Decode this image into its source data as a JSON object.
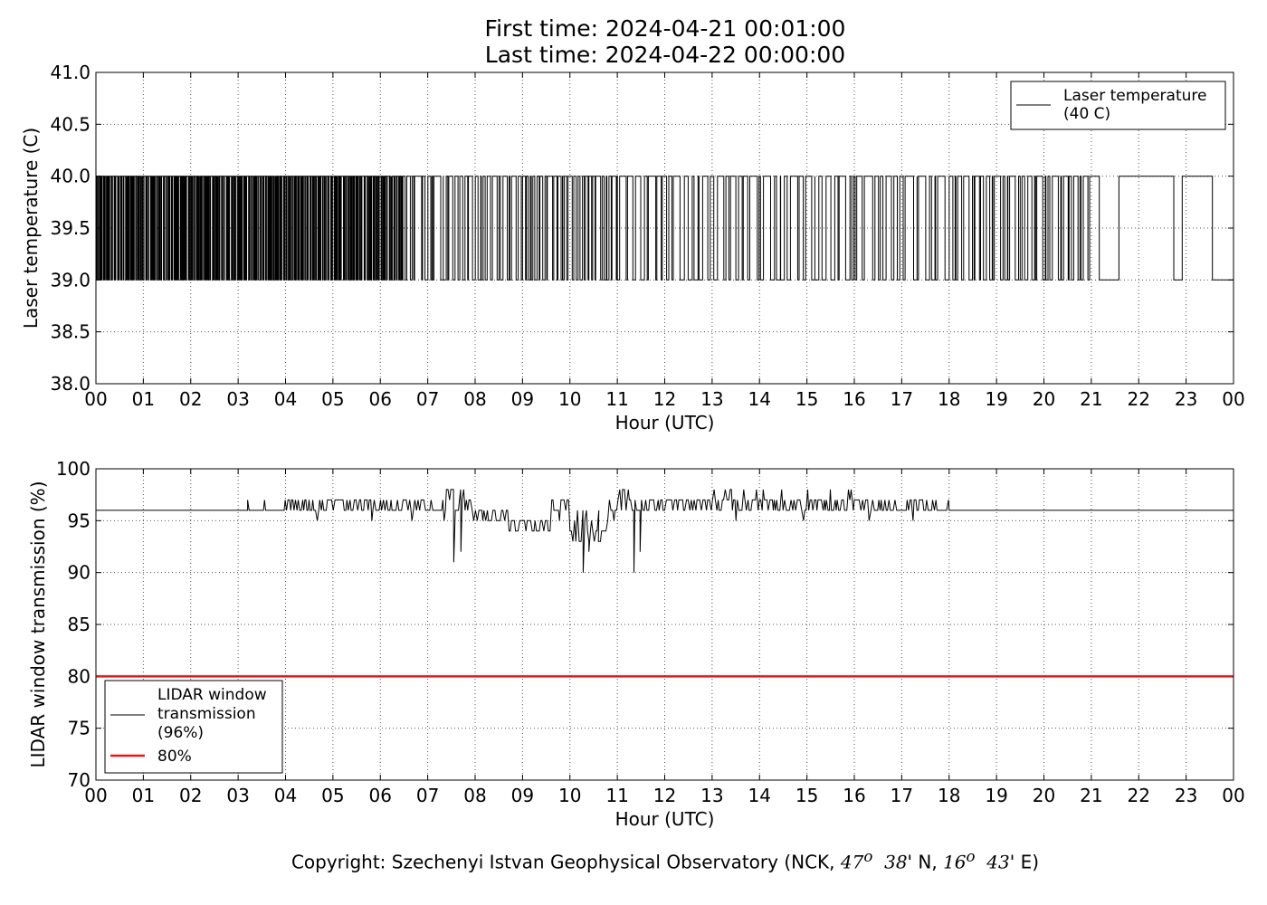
{
  "title": {
    "line1": "First time: 2024-04-21 00:01:00",
    "line2": "Last time: 2024-04-22 00:00:00"
  },
  "copyright": {
    "prefix": "Copyright: Szechenyi Istvan Geophysical Observatory (NCK, ",
    "lat_deg": "47",
    "lat_deg_sup": "o",
    "lat_min": "38",
    "lat_suffix": "' N, ",
    "lon_deg": "16",
    "lon_deg_sup": "o",
    "lon_min": "43",
    "lon_suffix": "' E)"
  },
  "colors": {
    "line": "#000000",
    "threshold": "#e31a1c",
    "grid": "#555555"
  },
  "chart_data": [
    {
      "type": "line",
      "xlabel": "Hour (UTC)",
      "ylabel": "Laser temperature (C)",
      "xlim": [
        0,
        24
      ],
      "ylim": [
        38.0,
        41.0
      ],
      "x_ticks": [
        "00",
        "01",
        "02",
        "03",
        "04",
        "05",
        "06",
        "07",
        "08",
        "09",
        "10",
        "11",
        "12",
        "13",
        "14",
        "15",
        "16",
        "17",
        "18",
        "19",
        "20",
        "21",
        "22",
        "23",
        "00"
      ],
      "y_ticks": [
        "38.0",
        "38.5",
        "39.0",
        "39.5",
        "40.0",
        "40.5",
        "41.0"
      ],
      "grid": true,
      "legend_position": "top-right",
      "series": [
        {
          "name": "Laser temperature\n(40 C)",
          "color": "#000000",
          "description": "step series alternating between 40.0 and 39.0",
          "segments": [
            {
              "x_start": 0.0,
              "x_end": 6.5,
              "toggles_per_hour": 30
            },
            {
              "x_start": 6.5,
              "x_end": 9.0,
              "toggles_per_hour": 10
            },
            {
              "x_start": 9.0,
              "x_end": 11.0,
              "toggles_per_hour": 12
            },
            {
              "x_start": 11.0,
              "x_end": 18.0,
              "toggles_per_hour": 7
            },
            {
              "x_start": 18.0,
              "x_end": 21.0,
              "toggles_per_hour": 9
            },
            {
              "x_start": 21.0,
              "x_end": 24.0,
              "toggles_per_hour": 1
            }
          ],
          "high": 40.0,
          "low": 39.0
        }
      ]
    },
    {
      "type": "line",
      "xlabel": "Hour (UTC)",
      "ylabel": "LIDAR window transmission (%)",
      "xlim": [
        0,
        24
      ],
      "ylim": [
        70,
        100
      ],
      "x_ticks": [
        "00",
        "01",
        "02",
        "03",
        "04",
        "05",
        "06",
        "07",
        "08",
        "09",
        "10",
        "11",
        "12",
        "13",
        "14",
        "15",
        "16",
        "17",
        "18",
        "19",
        "20",
        "21",
        "22",
        "23",
        "00"
      ],
      "y_ticks": [
        "70",
        "75",
        "80",
        "85",
        "90",
        "95",
        "100"
      ],
      "grid": true,
      "legend_position": "bottom-left",
      "series": [
        {
          "name": "LIDAR window\ntransmission\n(96%)",
          "color": "#000000",
          "baseline": 96,
          "noisy_from": 3.2,
          "noisy_to": 18.0,
          "dips": [
            {
              "x": 7.55,
              "y": 91
            },
            {
              "x": 7.7,
              "y": 92
            },
            {
              "x": 10.28,
              "y": 90
            },
            {
              "x": 10.4,
              "y": 92
            },
            {
              "x": 10.6,
              "y": 93
            },
            {
              "x": 11.35,
              "y": 90
            },
            {
              "x": 11.48,
              "y": 92
            }
          ]
        },
        {
          "name": "80%",
          "color": "#e31a1c",
          "values": [
            [
              0,
              80
            ],
            [
              24,
              80
            ]
          ]
        }
      ]
    }
  ]
}
